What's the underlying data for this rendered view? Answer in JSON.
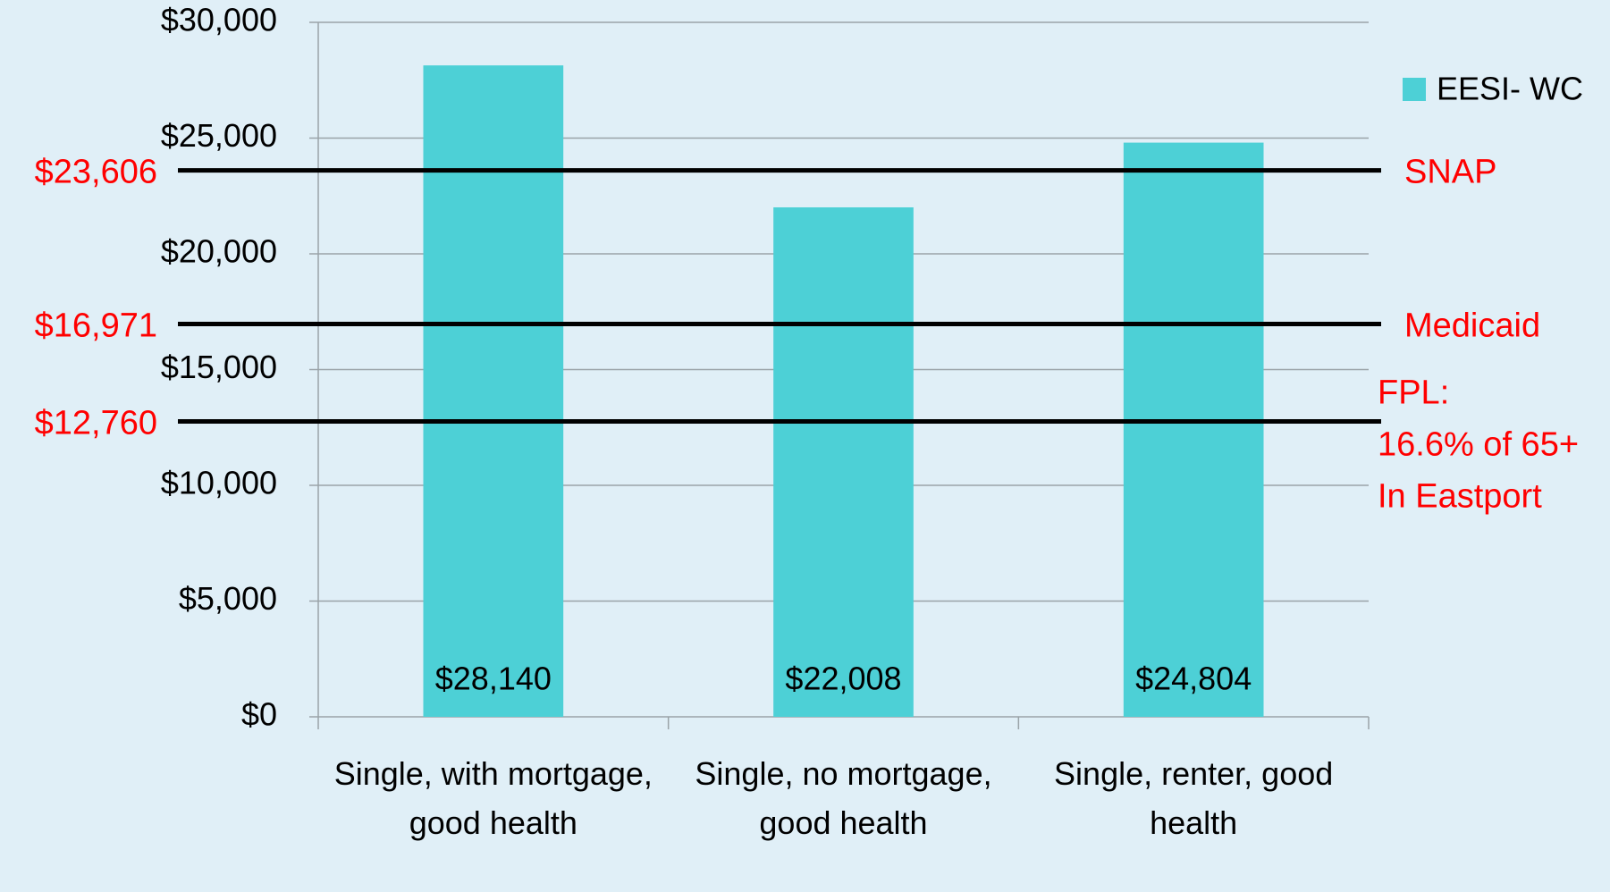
{
  "chart_data": {
    "type": "bar",
    "categories": [
      "Single, with mortgage, good health",
      "Single, no mortgage, good health",
      "Single, renter, good health"
    ],
    "series": [
      {
        "name": "EESI- WC",
        "color": "#4dd0d6",
        "values": [
          28140,
          22008,
          24804
        ],
        "value_labels": [
          "$28,140",
          "$22,008",
          "$24,804"
        ]
      }
    ],
    "ylim": [
      0,
      30000
    ],
    "yticks": [
      {
        "value": 0,
        "label": "$0"
      },
      {
        "value": 5000,
        "label": "$5,000"
      },
      {
        "value": 10000,
        "label": "$10,000"
      },
      {
        "value": 15000,
        "label": "$15,000"
      },
      {
        "value": 20000,
        "label": "$20,000"
      },
      {
        "value": 25000,
        "label": "$25,000"
      },
      {
        "value": 30000,
        "label": "$30,000"
      }
    ],
    "grid": true,
    "legend": "right",
    "reference_lines": [
      {
        "value": 23606,
        "value_label": "$23,606",
        "label": [
          "SNAP"
        ]
      },
      {
        "value": 16971,
        "value_label": "$16,971",
        "label": [
          "Medicaid"
        ]
      },
      {
        "value": 12760,
        "value_label": "$12,760",
        "label": [
          "FPL:",
          "16.6% of 65+",
          "In Eastport"
        ]
      }
    ]
  }
}
